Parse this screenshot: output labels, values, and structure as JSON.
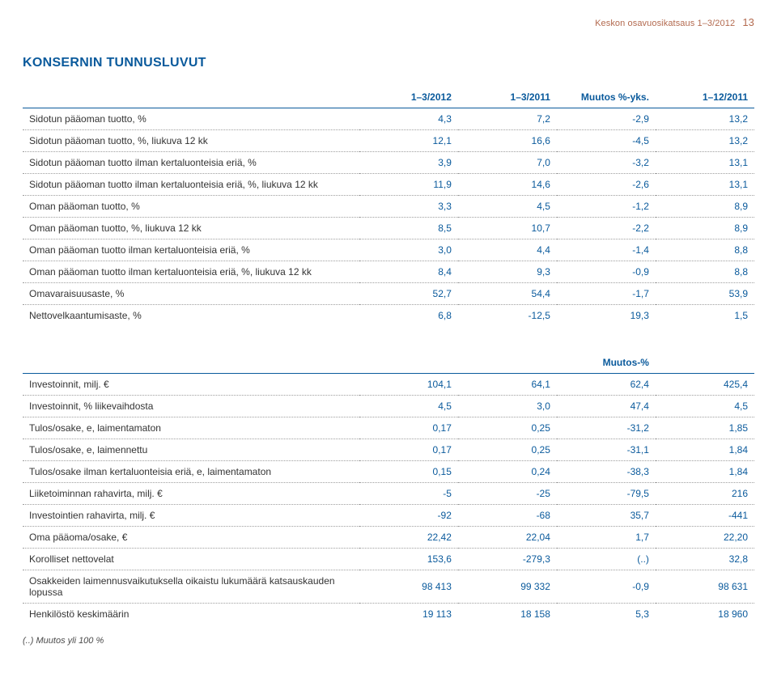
{
  "header": {
    "text": "Keskon osavuosikatsaus 1–3/2012",
    "page_number": "13"
  },
  "section_title": "KONSERNIN TUNNUSLUVUT",
  "table1": {
    "columns": [
      "",
      "1–3/2012",
      "1–3/2011",
      "Muutos %-yks.",
      "1–12/2011"
    ],
    "rows": [
      [
        "Sidotun pääoman tuotto, %",
        "4,3",
        "7,2",
        "-2,9",
        "13,2"
      ],
      [
        "Sidotun pääoman tuotto, %, liukuva 12 kk",
        "12,1",
        "16,6",
        "-4,5",
        "13,2"
      ],
      [
        "Sidotun pääoman tuotto ilman kertaluonteisia eriä, %",
        "3,9",
        "7,0",
        "-3,2",
        "13,1"
      ],
      [
        "Sidotun pääoman tuotto ilman kertaluonteisia eriä, %, liukuva 12 kk",
        "11,9",
        "14,6",
        "-2,6",
        "13,1"
      ],
      [
        "Oman pääoman tuotto, %",
        "3,3",
        "4,5",
        "-1,2",
        "8,9"
      ],
      [
        "Oman pääoman tuotto, %, liukuva 12 kk",
        "8,5",
        "10,7",
        "-2,2",
        "8,9"
      ],
      [
        "Oman pääoman tuotto ilman kertaluonteisia eriä, %",
        "3,0",
        "4,4",
        "-1,4",
        "8,8"
      ],
      [
        "Oman pääoman tuotto ilman kertaluonteisia eriä, %, liukuva 12 kk",
        "8,4",
        "9,3",
        "-0,9",
        "8,8"
      ],
      [
        "Omavaraisuusaste, %",
        "52,7",
        "54,4",
        "-1,7",
        "53,9"
      ],
      [
        "Nettovelkaantumisaste, %",
        "6,8",
        "-12,5",
        "19,3",
        "1,5"
      ]
    ]
  },
  "table2": {
    "columns": [
      "",
      "",
      "",
      "Muutos-%",
      ""
    ],
    "rows": [
      [
        "Investoinnit, milj. €",
        "104,1",
        "64,1",
        "62,4",
        "425,4"
      ],
      [
        "Investoinnit, % liikevaihdosta",
        "4,5",
        "3,0",
        "47,4",
        "4,5"
      ],
      [
        "Tulos/osake, e, laimentamaton",
        "0,17",
        "0,25",
        "-31,2",
        "1,85"
      ],
      [
        "Tulos/osake, e, laimennettu",
        "0,17",
        "0,25",
        "-31,1",
        "1,84"
      ],
      [
        "Tulos/osake ilman kertaluonteisia eriä, e, laimentamaton",
        "0,15",
        "0,24",
        "-38,3",
        "1,84"
      ],
      [
        "Liiketoiminnan rahavirta, milj. €",
        "-5",
        "-25",
        "-79,5",
        "216"
      ],
      [
        "Investointien rahavirta, milj. €",
        "-92",
        "-68",
        "35,7",
        "-441"
      ],
      [
        "Oma pääoma/osake, €",
        "22,42",
        "22,04",
        "1,7",
        "22,20"
      ],
      [
        "Korolliset nettovelat",
        "153,6",
        "-279,3",
        "(..)",
        "32,8"
      ],
      [
        "Osakkeiden laimennusvaikutuksella oikaistu lukumäärä katsauskauden lopussa",
        "98 413",
        "99 332",
        "-0,9",
        "98 631"
      ],
      [
        "Henkilöstö keskimäärin",
        "19 113",
        "18 158",
        "5,3",
        "18 960"
      ]
    ]
  },
  "footnote": "(..) Muutos yli 100 %",
  "colors": {
    "accent": "#0a5a9c",
    "header_text": "#b36a4f",
    "text": "#3a3a3a",
    "dotted": "#9e9e9e",
    "background": "#ffffff"
  }
}
